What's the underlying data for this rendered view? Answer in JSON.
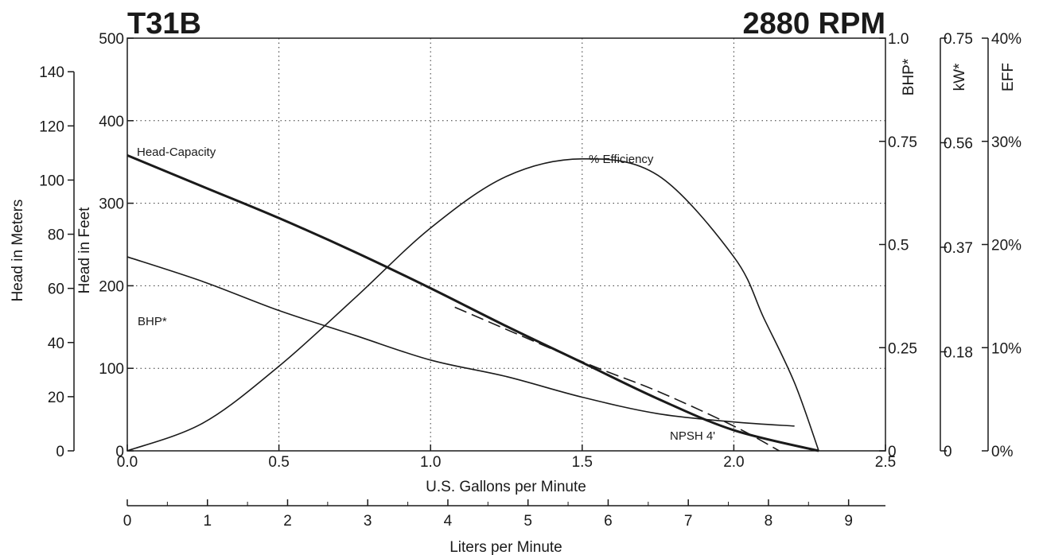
{
  "title_left": "T31B",
  "title_right": "2880 RPM",
  "axes": {
    "x_gpm_label": "U.S. Gallons per Minute",
    "x_lpm_label": "Liters per Minute",
    "y_feet_label": "Head in Feet",
    "y_meters_label": "Head in Meters",
    "y_bhp_label": "BHP*",
    "y_kw_label": "kW*",
    "y_eff_label": "EFF",
    "x_gpm_ticks": [
      "0.0",
      "0.5",
      "1.0",
      "1.5",
      "2.0",
      "2.5"
    ],
    "x_lpm_ticks": [
      "0",
      "1",
      "2",
      "3",
      "4",
      "5",
      "6",
      "7",
      "8",
      "9"
    ],
    "y_feet_ticks": [
      "0",
      "100",
      "200",
      "300",
      "400",
      "500"
    ],
    "y_meters_ticks": [
      "0",
      "20",
      "40",
      "60",
      "80",
      "100",
      "120",
      "140"
    ],
    "y_bhp_ticks": [
      "0",
      "0.25",
      "0.5",
      "0.75",
      "1.0"
    ],
    "y_kw_ticks": [
      "0",
      "0.18",
      "0.37",
      "0.56",
      "0.75"
    ],
    "y_eff_ticks": [
      "0%",
      "10%",
      "20%",
      "30%",
      "40%"
    ]
  },
  "chart_data": {
    "type": "line",
    "title": "T31B",
    "subtitle": "2880 RPM",
    "xlabel": "U.S. Gallons per Minute",
    "ylabel": "Head in Feet",
    "xlim": [
      0,
      2.5
    ],
    "ylim": [
      0,
      500
    ],
    "grid": true,
    "secondary_axes": {
      "head_meters_range": [
        0,
        152.4
      ],
      "bhp_range": [
        0,
        1.0
      ],
      "kw_range": [
        0,
        0.75
      ],
      "efficiency_range_percent": [
        0,
        40
      ],
      "liters_per_minute_range": [
        0,
        9.46
      ]
    },
    "series": [
      {
        "name": "Head-Capacity",
        "axis": "Head in Feet",
        "x": [
          0.0,
          0.25,
          0.5,
          0.75,
          1.0,
          1.25,
          1.5,
          1.75,
          2.0,
          2.28
        ],
        "y": [
          358,
          320,
          282,
          241,
          197,
          151,
          107,
          63,
          25,
          0
        ]
      },
      {
        "name": "% Efficiency",
        "axis": "EFF",
        "x": [
          0.0,
          0.25,
          0.5,
          0.75,
          1.0,
          1.25,
          1.5,
          1.75,
          2.0,
          2.1,
          2.2,
          2.28
        ],
        "y": [
          0,
          2.7,
          8.2,
          14.8,
          21.6,
          26.6,
          28.3,
          26.7,
          18.8,
          12.8,
          6.6,
          0
        ]
      },
      {
        "name": "BHP*",
        "axis": "BHP*",
        "x": [
          0.0,
          0.25,
          0.5,
          0.75,
          1.0,
          1.25,
          1.5,
          1.75,
          2.0,
          2.2
        ],
        "y": [
          0.47,
          0.41,
          0.34,
          0.28,
          0.22,
          0.18,
          0.13,
          0.09,
          0.07,
          0.06
        ]
      },
      {
        "name": "NPSH  4'",
        "axis": "Head in Feet",
        "style": "dashed",
        "x": [
          1.08,
          1.5,
          1.75,
          2.0,
          2.15
        ],
        "y": [
          174,
          108,
          72,
          30,
          0
        ]
      }
    ],
    "annotations": [
      "Head-Capacity",
      "% Efficiency",
      "BHP*",
      "NPSH  4'"
    ]
  }
}
